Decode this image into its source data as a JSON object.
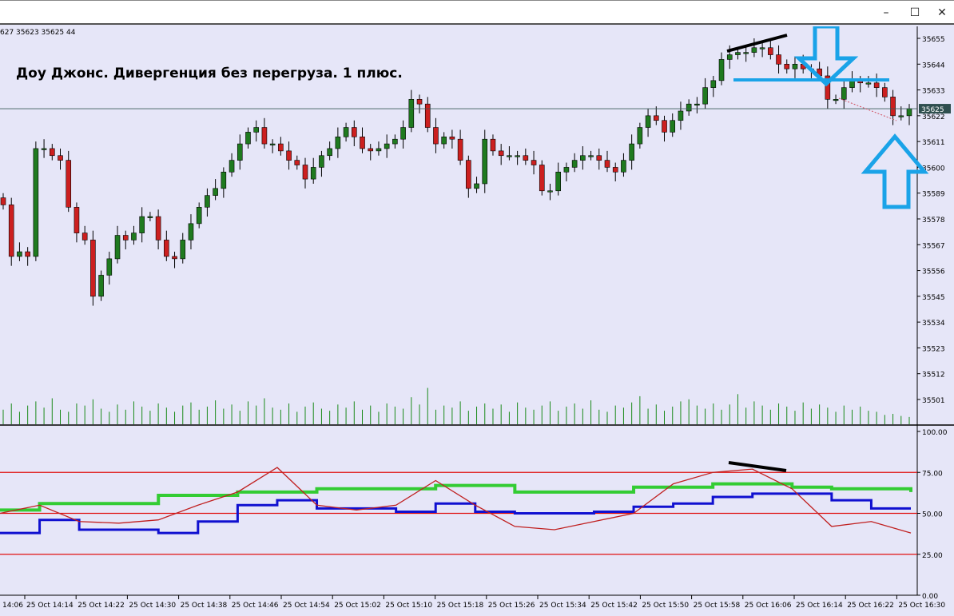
{
  "window": {
    "minimize_icon": "minimize-icon",
    "maximize_icon": "maximize-icon",
    "close_icon": "close-icon"
  },
  "ohlc_readout": "627 35623 35625  44",
  "annotation_text": "Доу Джонс. Дивергенция без перегруза. 1 плюс.",
  "colors": {
    "background": "#e6e6f8",
    "bull": "#1f7a1f",
    "bear": "#cc1f1f",
    "volume": "#1a8a1a",
    "arrow": "#1aa3e8",
    "level": "#e01010",
    "fast": "#c02020",
    "mid": "#1010d0",
    "slow": "#33cc33",
    "price_tag": "#2f4f4f"
  },
  "chart_data": {
    "type": "candlestick",
    "price_axis": {
      "ticks": [
        35655,
        35644,
        35633,
        35622,
        35611,
        35600,
        35589,
        35578,
        35567,
        35556,
        35545,
        35534,
        35523,
        35512,
        35501
      ],
      "range": [
        35495,
        35660
      ],
      "current_price": 35625
    },
    "time_axis": {
      "labels": [
        "14:06",
        "25 Oct 14:14",
        "25 Oct 14:22",
        "25 Oct 14:30",
        "25 Oct 14:38",
        "25 Oct 14:46",
        "25 Oct 14:54",
        "25 Oct 15:02",
        "25 Oct 15:10",
        "25 Oct 15:18",
        "25 Oct 15:26",
        "25 Oct 15:34",
        "25 Oct 15:42",
        "25 Oct 15:50",
        "25 Oct 15:58",
        "25 Oct 16:06",
        "25 Oct 16:14",
        "25 Oct 16:22",
        "25 Oct 16:30"
      ]
    },
    "closes": [
      35584,
      35562,
      35564,
      35562,
      35608,
      35608,
      35605,
      35603,
      35583,
      35572,
      35569,
      35545,
      35554,
      35561,
      35571,
      35569,
      35572,
      35579,
      35579,
      35569,
      35562,
      35561,
      35569,
      35576,
      35583,
      35588,
      35591,
      35598,
      35603,
      35610,
      35615,
      35617,
      35610,
      35610,
      35607,
      35603,
      35601,
      35595,
      35600,
      35605,
      35608,
      35613,
      35617,
      35613,
      35608,
      35607,
      35608,
      35610,
      35612,
      35617,
      35629,
      35627,
      35617,
      35610,
      35613,
      35612,
      35603,
      35591,
      35593,
      35612,
      35607,
      35605,
      35605,
      35605,
      35603,
      35601,
      35590,
      35590,
      35598,
      35600,
      35603,
      35605,
      35605,
      35603,
      35600,
      35598,
      35603,
      35610,
      35617,
      35622,
      35620,
      35615,
      35620,
      35624,
      35627,
      35627,
      35634,
      35637,
      35646,
      35648,
      35649,
      35649,
      35651,
      35651,
      35648,
      35644,
      35642,
      35644,
      35642,
      35642,
      35639,
      35629,
      35629,
      35634,
      35637,
      35636,
      35636,
      35634,
      35630,
      35622,
      35622,
      35625
    ],
    "volume": [
      14,
      20,
      12,
      18,
      22,
      16,
      25,
      14,
      12,
      20,
      18,
      24,
      15,
      12,
      19,
      14,
      22,
      17,
      13,
      20,
      16,
      12,
      18,
      21,
      14,
      17,
      23,
      15,
      19,
      13,
      22,
      18,
      25,
      16,
      14,
      20,
      12,
      17,
      21,
      15,
      13,
      19,
      16,
      22,
      14,
      18,
      12,
      20,
      17,
      15,
      26,
      19,
      35,
      14,
      18,
      16,
      22,
      13,
      17,
      20,
      15,
      19,
      12,
      21,
      16,
      14,
      18,
      22,
      13,
      17,
      20,
      15,
      23,
      14,
      12,
      18,
      16,
      21,
      27,
      15,
      19,
      13,
      17,
      22,
      24,
      18,
      15,
      20,
      14,
      19,
      29,
      16,
      22,
      18,
      14,
      20,
      17,
      13,
      21,
      15,
      19,
      16,
      12,
      18,
      14,
      17,
      13,
      12,
      9,
      10,
      8,
      7
    ],
    "indicator": {
      "axis_ticks": [
        100,
        75,
        50,
        25,
        0
      ],
      "tick_labels": [
        "100.00",
        "75.00",
        "50.00",
        "25.00",
        "0.00"
      ],
      "levels": [
        75,
        50,
        25
      ],
      "range": [
        0,
        100
      ],
      "series": [
        {
          "color": "#33cc33",
          "values": [
            52,
            56,
            56,
            56,
            61,
            61,
            63,
            63,
            65,
            65,
            65,
            67,
            67,
            63,
            63,
            63,
            66,
            66,
            68,
            68,
            66,
            65,
            65,
            63
          ]
        },
        {
          "color": "#1010d0",
          "values": [
            38,
            46,
            40,
            40,
            38,
            45,
            55,
            58,
            53,
            53,
            51,
            56,
            51,
            50,
            50,
            51,
            54,
            56,
            60,
            62,
            62,
            58,
            53,
            53
          ]
        },
        {
          "color": "#c02020",
          "values": [
            50,
            55,
            45,
            44,
            46,
            55,
            63,
            78,
            55,
            52,
            55,
            70,
            55,
            42,
            40,
            45,
            50,
            68,
            75,
            77,
            65,
            42,
            45,
            38
          ]
        }
      ]
    }
  }
}
